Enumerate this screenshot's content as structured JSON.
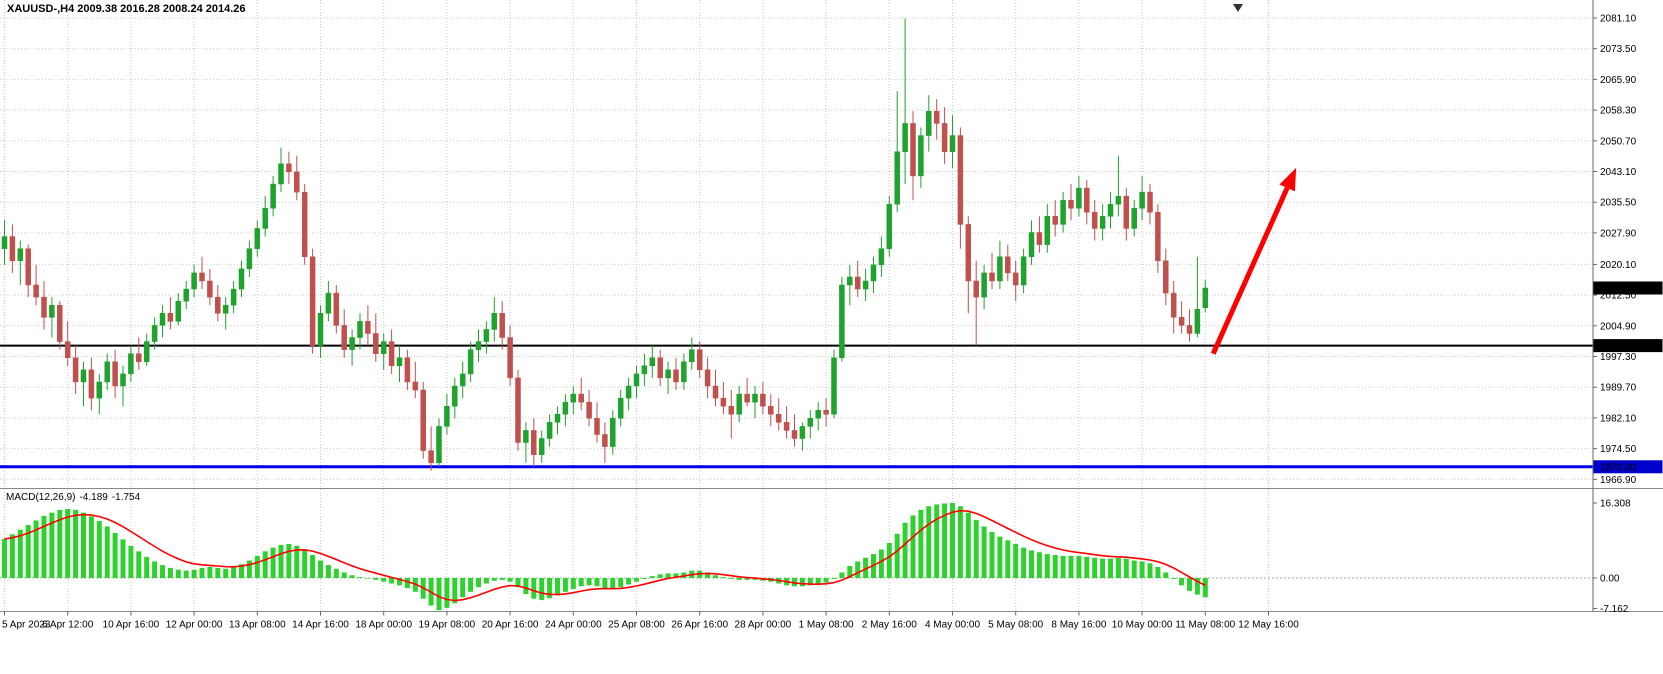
{
  "header": {
    "symbol_period": "XAUUSD-,H4",
    "ohlc": "2009.38 2016.28 2008.24 2014.26"
  },
  "colors": {
    "up": "#1fa22e",
    "down": "#c0504d",
    "histogram": "#2ed12e",
    "signal": "#ff0000",
    "arrow": "#ff0000",
    "grid": "#c9c9c9",
    "axis_text": "#000000",
    "background": "#ffffff"
  },
  "chart_data": {
    "type": "candlestick",
    "symbol": "XAUUSD-",
    "timeframe": "H4",
    "price_axis": {
      "ticks": [
        "2081.10",
        "2073.50",
        "2065.90",
        "2058.30",
        "2050.70",
        "2043.10",
        "2035.50",
        "2027.90",
        "2020.10",
        "2012.50",
        "2004.90",
        "1997.30",
        "1989.70",
        "1982.10",
        "1974.50",
        "1966.90"
      ],
      "badges": [
        {
          "text": "2014.26",
          "price": 2014.26,
          "bg": "#000000"
        },
        {
          "text": "2000.00",
          "price": 2000.0,
          "bg": "#000000"
        },
        {
          "text": "1970.00",
          "price": 1970.0,
          "bg": "#0000cc"
        }
      ]
    },
    "hlines": [
      {
        "price": 2000.0,
        "color": "#000000",
        "width": 2
      },
      {
        "price": 1970.0,
        "color": "#0000ee",
        "width": 3
      }
    ],
    "time_axis": {
      "labels": [
        "5 Apr 2023",
        "6 Apr 12:00",
        "10 Apr 16:00",
        "12 Apr 00:00",
        "13 Apr 08:00",
        "14 Apr 16:00",
        "18 Apr 00:00",
        "19 Apr 08:00",
        "20 Apr 16:00",
        "24 Apr 00:00",
        "25 Apr 08:00",
        "26 Apr 16:00",
        "28 Apr 00:00",
        "1 May 08:00",
        "2 May 16:00",
        "4 May 00:00",
        "5 May 08:00",
        "8 May 16:00",
        "10 May 00:00",
        "11 May 08:00",
        "12 May 16:00"
      ]
    },
    "candles": [
      [
        2024,
        2031,
        2020,
        2027
      ],
      [
        2027,
        2030,
        2018,
        2021
      ],
      [
        2021,
        2026,
        2015,
        2024
      ],
      [
        2024,
        2025,
        2012,
        2015
      ],
      [
        2015,
        2020,
        2010,
        2012
      ],
      [
        2012,
        2016,
        2004,
        2007
      ],
      [
        2007,
        2012,
        2002,
        2010
      ],
      [
        2010,
        2011,
        1999,
        2001
      ],
      [
        2001,
        2006,
        1995,
        1997
      ],
      [
        1997,
        2000,
        1988,
        1991
      ],
      [
        1991,
        1996,
        1985,
        1994
      ],
      [
        1994,
        1997,
        1984,
        1987
      ],
      [
        1987,
        1993,
        1983,
        1991
      ],
      [
        1991,
        1998,
        1989,
        1996
      ],
      [
        1996,
        1999,
        1987,
        1990
      ],
      [
        1990,
        1995,
        1985,
        1993
      ],
      [
        1993,
        2000,
        1991,
        1998
      ],
      [
        1998,
        2002,
        1994,
        1996
      ],
      [
        1996,
        2003,
        1995,
        2001
      ],
      [
        2001,
        2007,
        1999,
        2005
      ],
      [
        2005,
        2010,
        2002,
        2008
      ],
      [
        2008,
        2012,
        2004,
        2006
      ],
      [
        2006,
        2013,
        2005,
        2011
      ],
      [
        2011,
        2016,
        2009,
        2014
      ],
      [
        2014,
        2020,
        2012,
        2018
      ],
      [
        2018,
        2022,
        2014,
        2016
      ],
      [
        2016,
        2019,
        2010,
        2012
      ],
      [
        2012,
        2015,
        2006,
        2008
      ],
      [
        2008,
        2012,
        2004,
        2010
      ],
      [
        2010,
        2016,
        2008,
        2014
      ],
      [
        2014,
        2021,
        2012,
        2019
      ],
      [
        2019,
        2026,
        2017,
        2024
      ],
      [
        2024,
        2031,
        2022,
        2029
      ],
      [
        2029,
        2037,
        2027,
        2034
      ],
      [
        2034,
        2042,
        2032,
        2040
      ],
      [
        2040,
        2049,
        2038,
        2045
      ],
      [
        2045,
        2048,
        2040,
        2043
      ],
      [
        2043,
        2047,
        2036,
        2038
      ],
      [
        2038,
        2040,
        2020,
        2022
      ],
      [
        2022,
        2024,
        1998,
        2000
      ],
      [
        2000,
        2010,
        1997,
        2008
      ],
      [
        2008,
        2016,
        2006,
        2013
      ],
      [
        2013,
        2015,
        2003,
        2005
      ],
      [
        2005,
        2009,
        1997,
        1999
      ],
      [
        1999,
        2004,
        1995,
        2002
      ],
      [
        2002,
        2008,
        1999,
        2006
      ],
      [
        2006,
        2010,
        2000,
        2003
      ],
      [
        2003,
        2008,
        1996,
        1998
      ],
      [
        1998,
        2003,
        1994,
        2001
      ],
      [
        2001,
        2004,
        1993,
        1995
      ],
      [
        1995,
        2000,
        1991,
        1997
      ],
      [
        1997,
        1999,
        1989,
        1991
      ],
      [
        1991,
        1996,
        1987,
        1989
      ],
      [
        1989,
        1991,
        1972,
        1974
      ],
      [
        1974,
        1980,
        1969,
        1971
      ],
      [
        1971,
        1982,
        1970,
        1980
      ],
      [
        1980,
        1988,
        1978,
        1985
      ],
      [
        1985,
        1992,
        1982,
        1990
      ],
      [
        1990,
        1996,
        1987,
        1993
      ],
      [
        1993,
        2001,
        1991,
        1999
      ],
      [
        1999,
        2004,
        1996,
        2001
      ],
      [
        2001,
        2006,
        1998,
        2004
      ],
      [
        2004,
        2012,
        2001,
        2008
      ],
      [
        2008,
        2011,
        1999,
        2002
      ],
      [
        2002,
        2005,
        1990,
        1992
      ],
      [
        1992,
        1994,
        1974,
        1976
      ],
      [
        1976,
        1981,
        1971,
        1979
      ],
      [
        1979,
        1982,
        1970,
        1973
      ],
      [
        1973,
        1979,
        1971,
        1977
      ],
      [
        1977,
        1983,
        1975,
        1981
      ],
      [
        1981,
        1985,
        1978,
        1983
      ],
      [
        1983,
        1988,
        1980,
        1986
      ],
      [
        1986,
        1990,
        1983,
        1988
      ],
      [
        1988,
        1992,
        1984,
        1986
      ],
      [
        1986,
        1989,
        1980,
        1982
      ],
      [
        1982,
        1986,
        1976,
        1978
      ],
      [
        1978,
        1981,
        1971,
        1975
      ],
      [
        1975,
        1984,
        1973,
        1982
      ],
      [
        1982,
        1989,
        1980,
        1987
      ],
      [
        1987,
        1992,
        1984,
        1990
      ],
      [
        1990,
        1995,
        1987,
        1993
      ],
      [
        1993,
        1998,
        1990,
        1995
      ],
      [
        1995,
        2000,
        1992,
        1997
      ],
      [
        1997,
        1999,
        1990,
        1992
      ],
      [
        1992,
        1996,
        1988,
        1994
      ],
      [
        1994,
        1997,
        1989,
        1991
      ],
      [
        1991,
        1998,
        1989,
        1996
      ],
      [
        1996,
        2002,
        1994,
        1999
      ],
      [
        1999,
        2001,
        1992,
        1994
      ],
      [
        1994,
        1997,
        1987,
        1990
      ],
      [
        1990,
        1994,
        1985,
        1987
      ],
      [
        1987,
        1991,
        1983,
        1985
      ],
      [
        1985,
        1989,
        1977,
        1983
      ],
      [
        1983,
        1990,
        1981,
        1988
      ],
      [
        1988,
        1992,
        1985,
        1986
      ],
      [
        1986,
        1990,
        1982,
        1988
      ],
      [
        1988,
        1991,
        1983,
        1985
      ],
      [
        1985,
        1988,
        1980,
        1983
      ],
      [
        1983,
        1987,
        1979,
        1981
      ],
      [
        1981,
        1985,
        1977,
        1979
      ],
      [
        1979,
        1983,
        1975,
        1977
      ],
      [
        1977,
        1981,
        1974,
        1980
      ],
      [
        1980,
        1984,
        1977,
        1982
      ],
      [
        1982,
        1986,
        1979,
        1984
      ],
      [
        1984,
        1987,
        1980,
        1983
      ],
      [
        1983,
        1999,
        1982,
        1997
      ],
      [
        1997,
        2017,
        1996,
        2015
      ],
      [
        2015,
        2020,
        2010,
        2017
      ],
      [
        2017,
        2021,
        2012,
        2014
      ],
      [
        2014,
        2019,
        2011,
        2016
      ],
      [
        2016,
        2022,
        2013,
        2020
      ],
      [
        2020,
        2027,
        2017,
        2024
      ],
      [
        2024,
        2037,
        2022,
        2035
      ],
      [
        2035,
        2063,
        2033,
        2048
      ],
      [
        2048,
        2081,
        2040,
        2055
      ],
      [
        2055,
        2058,
        2036,
        2042
      ],
      [
        2042,
        2054,
        2039,
        2052
      ],
      [
        2052,
        2062,
        2048,
        2058
      ],
      [
        2058,
        2061,
        2051,
        2055
      ],
      [
        2055,
        2059,
        2045,
        2048
      ],
      [
        2048,
        2057,
        2044,
        2052
      ],
      [
        2052,
        2054,
        2024,
        2030
      ],
      [
        2030,
        2032,
        2008,
        2016
      ],
      [
        2016,
        2021,
        2000,
        2012
      ],
      [
        2012,
        2020,
        2009,
        2018
      ],
      [
        2018,
        2023,
        2014,
        2016
      ],
      [
        2016,
        2026,
        2014,
        2022
      ],
      [
        2022,
        2025,
        2016,
        2018
      ],
      [
        2018,
        2021,
        2011,
        2015
      ],
      [
        2015,
        2024,
        2013,
        2022
      ],
      [
        2022,
        2031,
        2020,
        2028
      ],
      [
        2028,
        2032,
        2023,
        2025
      ],
      [
        2025,
        2035,
        2023,
        2032
      ],
      [
        2032,
        2036,
        2027,
        2030
      ],
      [
        2030,
        2038,
        2028,
        2036
      ],
      [
        2036,
        2040,
        2031,
        2034
      ],
      [
        2034,
        2042,
        2032,
        2039
      ],
      [
        2039,
        2041,
        2030,
        2033
      ],
      [
        2033,
        2036,
        2026,
        2029
      ],
      [
        2029,
        2035,
        2026,
        2032
      ],
      [
        2032,
        2038,
        2029,
        2035
      ],
      [
        2035,
        2047,
        2032,
        2037
      ],
      [
        2037,
        2039,
        2026,
        2029
      ],
      [
        2029,
        2036,
        2027,
        2034
      ],
      [
        2034,
        2042,
        2031,
        2038
      ],
      [
        2038,
        2040,
        2030,
        2033
      ],
      [
        2033,
        2035,
        2018,
        2021
      ],
      [
        2021,
        2024,
        2010,
        2013
      ],
      [
        2013,
        2016,
        2003,
        2007
      ],
      [
        2007,
        2011,
        2003,
        2005
      ],
      [
        2005,
        2009,
        2001,
        2003
      ],
      [
        2003,
        2022,
        2002,
        2009
      ],
      [
        2009.38,
        2016.28,
        2008.24,
        2014.26
      ]
    ],
    "arrow": {
      "from_index": 153,
      "from_price": 1998,
      "to_index": 163.5,
      "to_price": 2044,
      "color": "#ff0000"
    },
    "macd": {
      "name": "MACD(12,26,9)",
      "value": "-4.189",
      "signal_value": "-1.754",
      "ticks": [
        "16.308",
        "0.00",
        "-7.162"
      ],
      "histogram": [
        8.5,
        9.5,
        10.5,
        11.5,
        12.5,
        13.5,
        14.2,
        14.8,
        15.0,
        14.8,
        14.2,
        13.4,
        12.4,
        11.2,
        9.8,
        8.4,
        7.0,
        5.8,
        4.6,
        3.6,
        2.8,
        2.2,
        1.8,
        1.6,
        1.8,
        2.2,
        2.4,
        2.2,
        2.0,
        2.4,
        3.0,
        3.8,
        4.8,
        5.8,
        6.6,
        7.2,
        7.4,
        7.0,
        6.2,
        5.0,
        3.8,
        2.8,
        2.0,
        1.2,
        0.6,
        0.2,
        0.0,
        -0.4,
        -0.8,
        -1.2,
        -1.6,
        -2.2,
        -3.0,
        -4.5,
        -6.0,
        -7.0,
        -6.5,
        -5.5,
        -4.2,
        -3.0,
        -2.0,
        -1.2,
        -0.6,
        -0.4,
        -0.8,
        -2.0,
        -3.5,
        -4.5,
        -4.8,
        -4.4,
        -3.8,
        -3.0,
        -2.4,
        -1.8,
        -1.6,
        -1.8,
        -2.2,
        -2.4,
        -2.0,
        -1.4,
        -0.8,
        -0.2,
        0.4,
        0.8,
        1.0,
        1.0,
        1.2,
        1.6,
        1.6,
        1.2,
        0.6,
        0.2,
        -0.2,
        -0.4,
        -0.4,
        -0.4,
        -0.6,
        -0.8,
        -1.2,
        -1.6,
        -1.8,
        -1.8,
        -1.6,
        -1.4,
        -1.0,
        -0.2,
        1.2,
        2.6,
        3.6,
        4.4,
        5.2,
        6.2,
        7.6,
        9.6,
        12.0,
        13.6,
        14.8,
        15.6,
        16.0,
        16.2,
        16.3,
        15.6,
        14.2,
        12.6,
        11.2,
        10.0,
        9.0,
        8.2,
        7.4,
        6.6,
        6.0,
        5.6,
        5.2,
        5.0,
        4.8,
        4.8,
        4.8,
        4.6,
        4.4,
        4.2,
        4.2,
        4.4,
        4.2,
        3.8,
        3.6,
        3.2,
        2.4,
        1.2,
        -0.2,
        -1.6,
        -2.8,
        -3.6,
        -4.189
      ]
    }
  }
}
